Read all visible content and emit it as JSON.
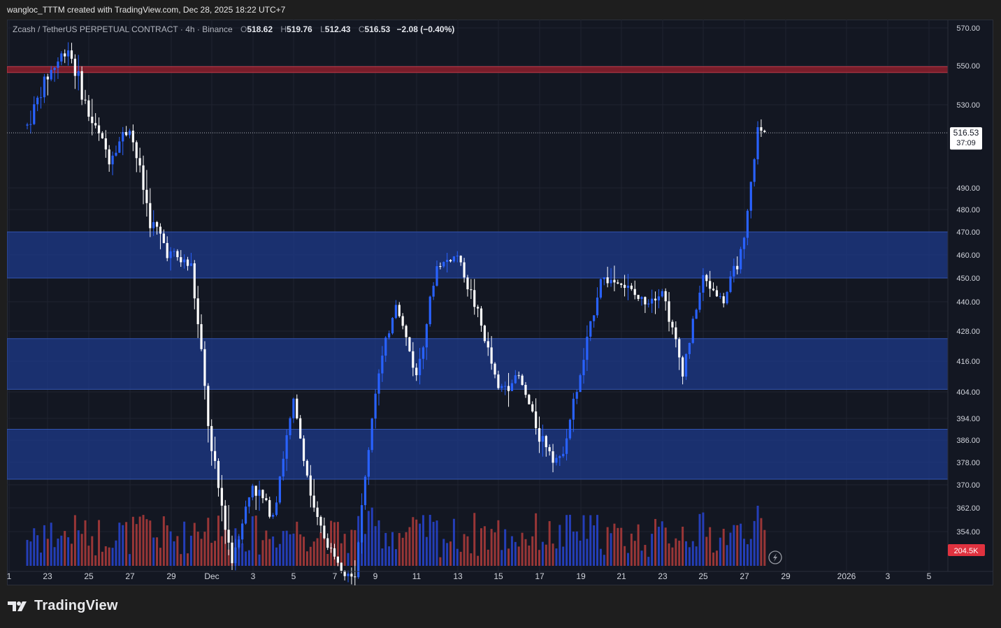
{
  "header": {
    "credit": "wangloc_TTTM created with TradingView.com, Dec 28, 2025 18:22 UTC+7"
  },
  "legend": {
    "symbol": "Zcash / TetherUS PERPETUAL CONTRACT",
    "interval": "4h",
    "exchange": "Binance",
    "o_key": "O",
    "o": "518.62",
    "h_key": "H",
    "h": "519.76",
    "l_key": "L",
    "l": "512.43",
    "c_key": "C",
    "c": "516.53",
    "change": "−2.08 (−0.40%)"
  },
  "price_tag": {
    "price": "516.53",
    "countdown": "37:09"
  },
  "volume_tag": "204.5K",
  "colors": {
    "background": "#131722",
    "up_candle": "#2962ff",
    "down_candle": "#ffffff",
    "up_volume": "#2742c9",
    "down_volume": "#a83a3a",
    "zone_blue": "#1e3a8a",
    "zone_red": "#8b1e2b"
  },
  "footer": {
    "brand": "TradingView"
  },
  "chart_data": {
    "type": "candlestick",
    "interval": "4h",
    "y_ticks": [
      "570.00",
      "550.00",
      "530.00",
      "490.00",
      "480.00",
      "470.00",
      "460.00",
      "450.00",
      "440.00",
      "428.00",
      "416.00",
      "404.00",
      "394.00",
      "386.00",
      "378.00",
      "370.00",
      "362.00",
      "354.00"
    ],
    "x_ticks": [
      "1",
      "23",
      "25",
      "27",
      "29",
      "Dec",
      "3",
      "5",
      "7",
      "9",
      "11",
      "13",
      "15",
      "17",
      "19",
      "21",
      "23",
      "25",
      "27",
      "29",
      "2026",
      "3",
      "5"
    ],
    "last_price": 516.53,
    "zones": [
      {
        "from": 546.5,
        "to": 549.5,
        "color": "red"
      },
      {
        "from": 450,
        "to": 470,
        "color": "blue"
      },
      {
        "from": 405,
        "to": 425,
        "color": "blue"
      },
      {
        "from": 372,
        "to": 390,
        "color": "blue"
      }
    ],
    "price_path": [
      [
        "22 Nov",
        520
      ],
      [
        "23 Nov",
        545
      ],
      [
        "24 Nov",
        560
      ],
      [
        "25 Nov",
        525
      ],
      [
        "26 Nov",
        505
      ],
      [
        "27 Nov",
        520
      ],
      [
        "28 Nov",
        475
      ],
      [
        "29 Nov",
        460
      ],
      [
        "30 Nov",
        455
      ],
      [
        "1 Dec",
        380
      ],
      [
        "2 Dec",
        345
      ],
      [
        "3 Dec",
        370
      ],
      [
        "4 Dec",
        360
      ],
      [
        "5 Dec",
        400
      ],
      [
        "6 Dec",
        360
      ],
      [
        "7 Dec",
        345
      ],
      [
        "8 Dec",
        340
      ],
      [
        "9 Dec",
        405
      ],
      [
        "10 Dec",
        440
      ],
      [
        "11 Dec",
        410
      ],
      [
        "12 Dec",
        455
      ],
      [
        "13 Dec",
        460
      ],
      [
        "14 Dec",
        435
      ],
      [
        "15 Dec",
        405
      ],
      [
        "16 Dec",
        410
      ],
      [
        "17 Dec",
        388
      ],
      [
        "18 Dec",
        378
      ],
      [
        "19 Dec",
        410
      ],
      [
        "20 Dec",
        450
      ],
      [
        "21 Dec",
        448
      ],
      [
        "22 Dec",
        440
      ],
      [
        "23 Dec",
        445
      ],
      [
        "24 Dec",
        412
      ],
      [
        "25 Dec",
        450
      ],
      [
        "26 Dec",
        440
      ],
      [
        "27 Dec",
        465
      ],
      [
        "27 Dec 16:00",
        518
      ],
      [
        "28 Dec",
        516.5
      ]
    ]
  }
}
